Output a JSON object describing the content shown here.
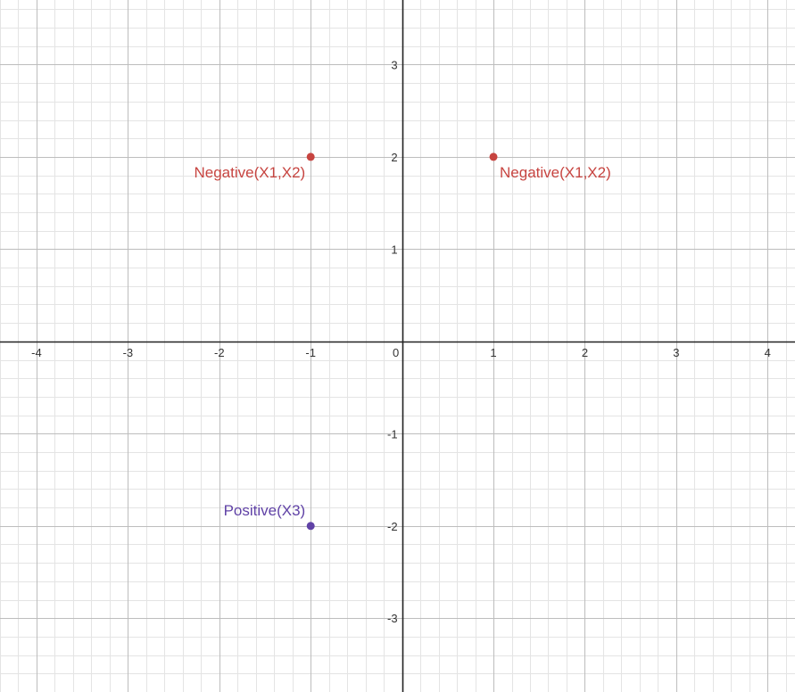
{
  "chart_data": {
    "type": "scatter",
    "title": "",
    "xlabel": "",
    "ylabel": "",
    "xlim": [
      -4.4,
      4.3
    ],
    "ylim": [
      -3.8,
      3.7
    ],
    "grid": true,
    "minor_grid": true,
    "x_ticks": [
      -4,
      -3,
      -2,
      -1,
      0,
      1,
      2,
      3,
      4
    ],
    "y_ticks": [
      -3,
      -2,
      -1,
      1,
      2,
      3
    ],
    "points": [
      {
        "x": -1,
        "y": 2,
        "label": "Negative(X1,X2)",
        "color": "#c74440",
        "label_side": "left"
      },
      {
        "x": 1,
        "y": 2,
        "label": "Negative(X1,X2)",
        "color": "#c74440",
        "label_side": "right"
      },
      {
        "x": -1,
        "y": -2,
        "label": "Positive(X3)",
        "color": "#6042a6",
        "label_side": "left"
      }
    ]
  }
}
